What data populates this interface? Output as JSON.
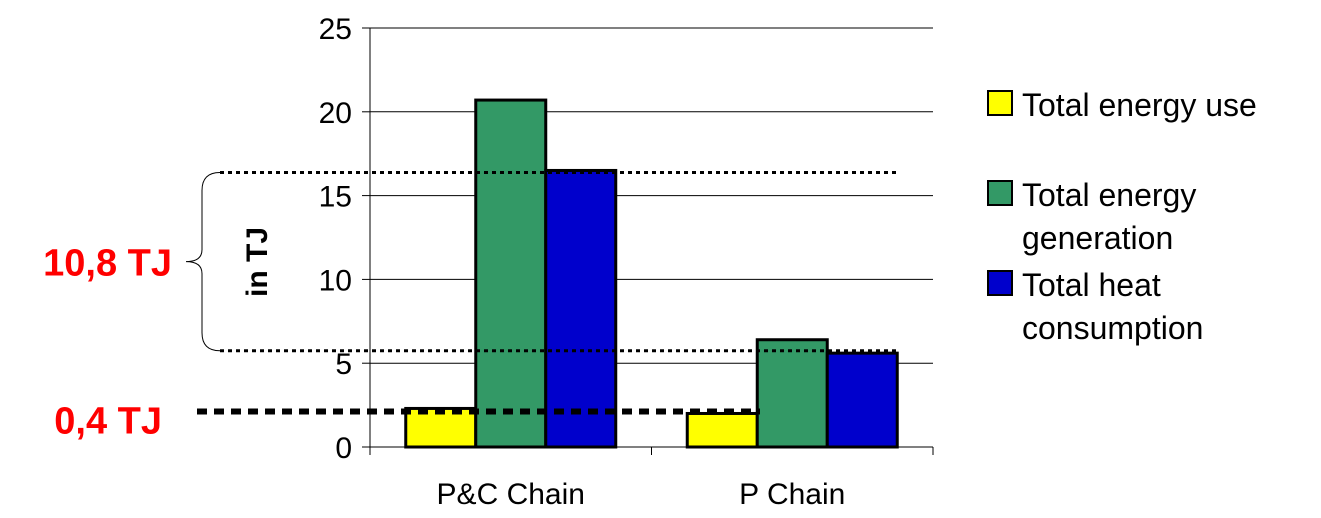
{
  "chart_data": {
    "type": "bar",
    "categories": [
      "P&C Chain",
      "P Chain"
    ],
    "series": [
      {
        "name": "Total energy use",
        "values": [
          2.3,
          2.0
        ],
        "color": "#ffff00"
      },
      {
        "name": "Total energy generation",
        "values": [
          20.7,
          6.4
        ],
        "color": "#339966"
      },
      {
        "name": "Total heat consumption",
        "values": [
          16.5,
          5.6
        ],
        "color": "#0000cc"
      }
    ],
    "ylabel": "in TJ",
    "ylim": [
      0,
      25
    ],
    "yticks": [
      0,
      5,
      10,
      15,
      20,
      25
    ],
    "grid": true,
    "legend_position": "right",
    "annotations": [
      {
        "label": "10,8 TJ",
        "type": "brace",
        "from": 5.8,
        "to": 16.5
      },
      {
        "label": "0,4 TJ",
        "type": "dashed-line",
        "at": 2.0
      }
    ]
  }
}
